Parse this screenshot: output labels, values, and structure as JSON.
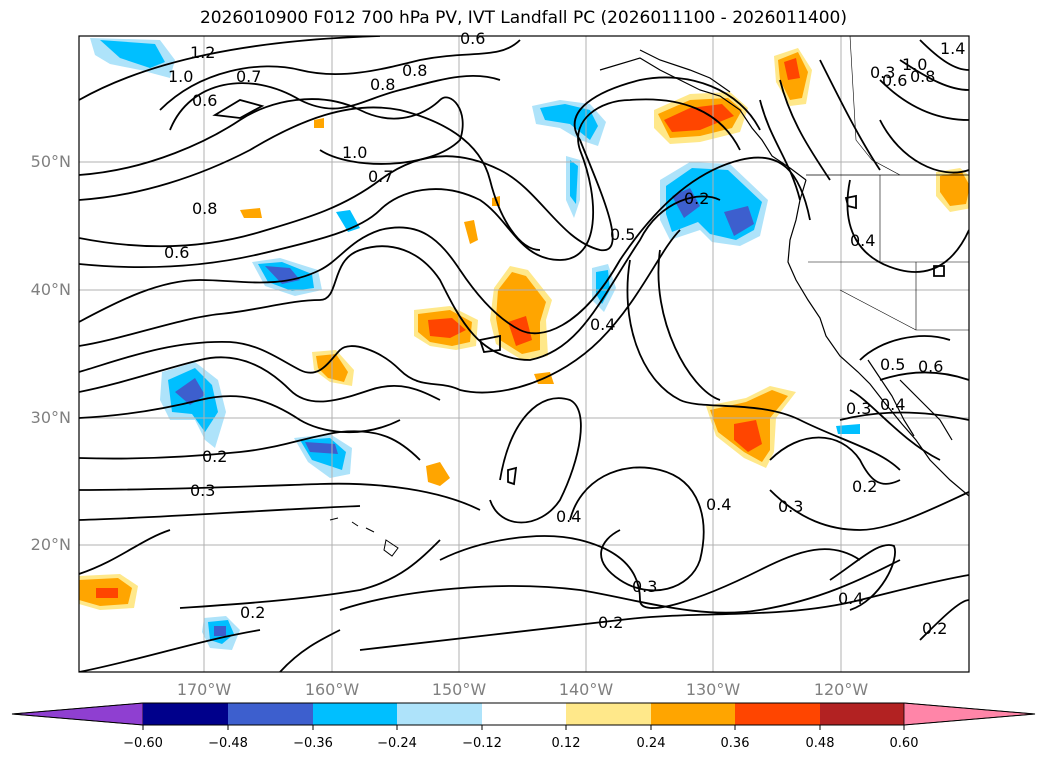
{
  "title": "2026010900 F012 700 hPa PV, IVT Landfall PC (2026011100 - 2026011400)",
  "map": {
    "projection": "cylindrical",
    "lon_range": [
      -180,
      -110
    ],
    "lat_range": [
      10,
      60
    ],
    "gridlines": true,
    "lat_labels": [
      "50°N",
      "40°N",
      "30°N",
      "20°N"
    ],
    "lon_labels": [
      "170°W",
      "160°W",
      "150°W",
      "140°W",
      "130°W",
      "120°W"
    ],
    "contour_labels": [
      "1.2",
      "1.0",
      "0.7",
      "0.6",
      "0.8",
      "0.6",
      "0.8",
      "1.0",
      "0.7",
      "0.8",
      "0.6",
      "0.5",
      "0.2",
      "0.4",
      "0.2",
      "0.3",
      "0.4",
      "0.4",
      "0.3",
      "0.3",
      "0.2",
      "0.2",
      "0.2",
      "0.4",
      "0.2",
      "0.5",
      "0.4",
      "0.3",
      "0.6",
      "0.4",
      "1.0",
      "0.8",
      "0.6",
      "0.3",
      "1.4"
    ]
  },
  "colorbar": {
    "ticks": [
      "−0.60",
      "−0.48",
      "−0.36",
      "−0.24",
      "−0.12",
      "0.12",
      "0.24",
      "0.36",
      "0.48",
      "0.60"
    ],
    "colors": [
      "#8f3fd1",
      "#00008b",
      "#3d5fce",
      "#00bfff",
      "#aee3fa",
      "#ffffff",
      "#ffe88a",
      "#ffa500",
      "#ff4500",
      "#b22222",
      "#ff85a8"
    ],
    "extend": "both"
  },
  "shading_colors": {
    "neg_light": "#aee3fa",
    "neg_mid": "#00bfff",
    "neg_strong": "#3d5fce",
    "pos_light": "#ffe88a",
    "pos_mid": "#ffa500",
    "pos_strong": "#ff4500"
  }
}
